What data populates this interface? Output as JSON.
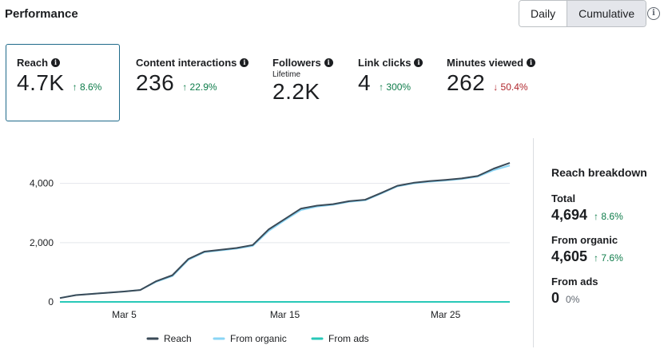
{
  "header": {
    "title": "Performance",
    "toggle": {
      "daily_label": "Daily",
      "cumulative_label": "Cumulative",
      "selected": "Cumulative"
    },
    "info_icon": "info-icon"
  },
  "metrics": [
    {
      "label": "Reach",
      "value": "4.7K",
      "change": "↑ 8.6%",
      "direction": "up",
      "selected": true
    },
    {
      "label": "Content interactions",
      "value": "236",
      "change": "↑ 22.9%",
      "direction": "up"
    },
    {
      "label": "Followers",
      "sublabel": "Lifetime",
      "value": "2.2K"
    },
    {
      "label": "Link clicks",
      "value": "4",
      "change": "↑ 300%",
      "direction": "up"
    },
    {
      "label": "Minutes viewed",
      "value": "262",
      "change": "↓ 50.4%",
      "direction": "down"
    }
  ],
  "colors": {
    "reach": "#3a4a57",
    "organic": "#8ad5f5",
    "ads": "#28c8b8",
    "up": "#0e7c4a",
    "down": "#b0272d",
    "selected_border": "#1f6a8a"
  },
  "chart_data": {
    "type": "line",
    "x": [
      1,
      2,
      3,
      4,
      5,
      6,
      7,
      8,
      9,
      10,
      11,
      12,
      13,
      14,
      15,
      16,
      17,
      18,
      19,
      20,
      21,
      22,
      23,
      24,
      25,
      26,
      27,
      28,
      29
    ],
    "x_tick_values": [
      5,
      15,
      25
    ],
    "x_tick_labels": [
      "Mar 5",
      "Mar 15",
      "Mar 25"
    ],
    "y_ticks": [
      0,
      2000,
      4000
    ],
    "y_tick_labels": [
      "0",
      "2,000",
      "4,000"
    ],
    "ylim": [
      0,
      4800
    ],
    "xlim": [
      1,
      29
    ],
    "series": [
      {
        "name": "Reach",
        "values": [
          130,
          230,
          270,
          310,
          350,
          400,
          700,
          900,
          1450,
          1700,
          1760,
          1820,
          1920,
          2450,
          2800,
          3150,
          3250,
          3300,
          3400,
          3450,
          3680,
          3920,
          4020,
          4080,
          4120,
          4170,
          4250,
          4500,
          4694
        ]
      },
      {
        "name": "From organic",
        "values": [
          130,
          230,
          270,
          310,
          350,
          400,
          680,
          870,
          1420,
          1680,
          1740,
          1800,
          1890,
          2400,
          2760,
          3100,
          3220,
          3280,
          3380,
          3430,
          3660,
          3900,
          4000,
          4060,
          4100,
          4150,
          4230,
          4450,
          4605
        ]
      },
      {
        "name": "From ads",
        "values": [
          0,
          0,
          0,
          0,
          0,
          0,
          0,
          0,
          0,
          0,
          0,
          0,
          0,
          0,
          0,
          0,
          0,
          0,
          0,
          0,
          0,
          0,
          0,
          0,
          0,
          0,
          0,
          0,
          0
        ]
      }
    ],
    "legend": [
      "Reach",
      "From organic",
      "From ads"
    ],
    "legend_position": "bottom"
  },
  "breakdown": {
    "title": "Reach breakdown",
    "total_label": "Total",
    "total_value": "4,694",
    "total_change": "↑ 8.6%",
    "organic_label": "From organic",
    "organic_value": "4,605",
    "organic_change": "↑ 7.6%",
    "ads_label": "From ads",
    "ads_value": "0",
    "ads_change": "0%"
  }
}
